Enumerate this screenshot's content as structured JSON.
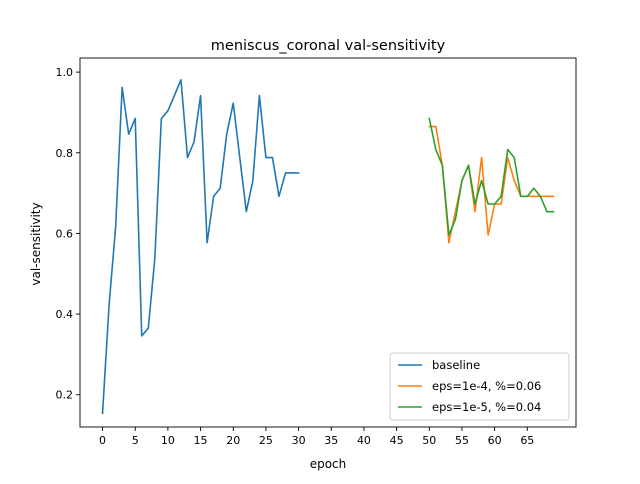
{
  "chart_data": {
    "type": "line",
    "title": "meniscus_coronal val-sensitivity",
    "xlabel": "epoch",
    "ylabel": "val-sensitivity",
    "xlim": [
      -3.45,
      72.45
    ],
    "ylim": [
      0.12,
      1.035
    ],
    "xticks": [
      0,
      5,
      10,
      15,
      20,
      25,
      30,
      35,
      40,
      45,
      50,
      55,
      60,
      65
    ],
    "yticks": [
      0.2,
      0.4,
      0.6,
      0.8,
      1.0
    ],
    "ytick_labels": [
      "0.2",
      "0.4",
      "0.6",
      "0.8",
      "1.0"
    ],
    "grid": false,
    "legend_position": "lower-right",
    "series": [
      {
        "name": "baseline",
        "color": "#1f77b4",
        "x": [
          0,
          1,
          2,
          3,
          4,
          5,
          6,
          7,
          8,
          9,
          10,
          11,
          12,
          13,
          14,
          15,
          16,
          17,
          18,
          19,
          20,
          21,
          22,
          23,
          24,
          25,
          26,
          27,
          28,
          29,
          30
        ],
        "y": [
          0.154,
          0.423,
          0.615,
          0.962,
          0.846,
          0.885,
          0.346,
          0.365,
          0.538,
          0.885,
          0.904,
          0.942,
          0.981,
          0.788,
          0.827,
          0.942,
          0.577,
          0.692,
          0.712,
          0.846,
          0.923,
          0.788,
          0.654,
          0.731,
          0.942,
          0.788,
          0.788,
          0.692,
          0.75,
          0.75,
          0.75
        ]
      },
      {
        "name": "eps=1e-4, %=0.06",
        "color": "#ff7f0e",
        "x": [
          50,
          51,
          52,
          53,
          54,
          55,
          56,
          57,
          58,
          59,
          60,
          61,
          62,
          63,
          64,
          65,
          66,
          67,
          68,
          69
        ],
        "y": [
          0.865,
          0.865,
          0.769,
          0.577,
          0.654,
          0.731,
          0.769,
          0.654,
          0.788,
          0.596,
          0.673,
          0.673,
          0.788,
          0.731,
          0.692,
          0.692,
          0.692,
          0.692,
          0.692,
          0.692
        ]
      },
      {
        "name": "eps=1e-5, %=0.04",
        "color": "#2ca02c",
        "x": [
          50,
          51,
          52,
          53,
          54,
          55,
          56,
          57,
          58,
          59,
          60,
          61,
          62,
          63,
          64,
          65,
          66,
          67,
          68,
          69
        ],
        "y": [
          0.885,
          0.808,
          0.769,
          0.596,
          0.635,
          0.731,
          0.769,
          0.673,
          0.731,
          0.673,
          0.673,
          0.692,
          0.808,
          0.788,
          0.692,
          0.692,
          0.712,
          0.692,
          0.654,
          0.654
        ]
      }
    ]
  }
}
